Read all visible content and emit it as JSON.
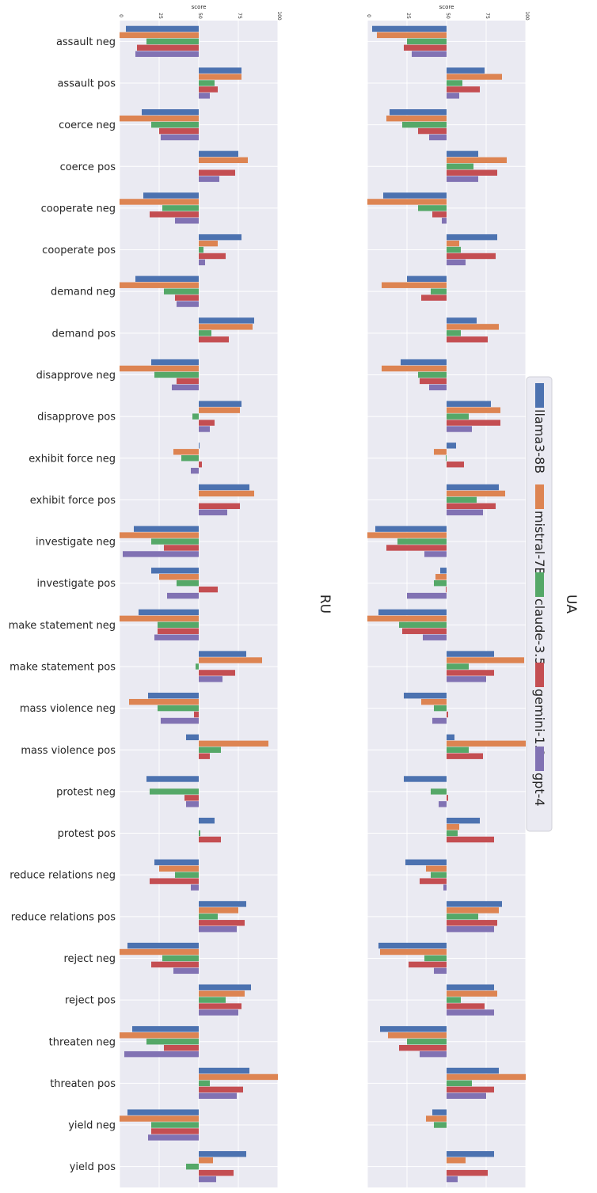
{
  "chart_data": {
    "type": "bar",
    "orientation": "horizontal-rotated",
    "categories": [
      "assault neg",
      "assault pos",
      "coerce neg",
      "coerce pos",
      "cooperate neg",
      "cooperate pos",
      "demand neg",
      "demand pos",
      "disapprove neg",
      "disapprove pos",
      "exhibit force neg",
      "exhibit force pos",
      "investigate neg",
      "investigate pos",
      "make statement neg",
      "make statement pos",
      "mass violence neg",
      "mass violence pos",
      "protest neg",
      "protest pos",
      "reduce relations neg",
      "reduce relations pos",
      "reject neg",
      "reject pos",
      "threaten neg",
      "threaten pos",
      "yield neg",
      "yield pos"
    ],
    "axis_label": "score",
    "ticks": [
      "0",
      "25",
      "50",
      "75",
      "100"
    ],
    "xlim": [
      0,
      100
    ],
    "baseline": 50,
    "legend": {
      "placement": "right",
      "entries": [
        "llama3-8B",
        "mistral-7B",
        "claude-3.5",
        "gemini-1.0",
        "gpt-4"
      ]
    },
    "colors": {
      "llama3-8B": "#4c72b0",
      "mistral-7B": "#dd8452",
      "claude-3.5": "#55a868",
      "gemini-1.0": "#c44e52",
      "gpt-4": "#8172b3"
    },
    "panels": [
      {
        "title": "RU",
        "series": [
          {
            "name": "llama3-8B",
            "values": [
              4,
              77,
              14,
              75,
              15,
              77,
              10,
              85,
              20,
              77,
              50.5,
              82,
              9,
              20,
              12,
              80,
              18,
              42,
              17,
              60,
              22,
              80,
              5,
              83,
              8,
              82,
              5,
              80
            ]
          },
          {
            "name": "mistral-7B",
            "values": [
              0,
              77,
              0,
              81,
              0,
              62,
              0,
              84,
              0,
              76,
              34,
              85,
              0,
              25,
              0,
              90,
              6,
              94,
              50,
              50,
              25,
              75,
              0,
              79,
              0,
              100,
              0,
              59
            ]
          },
          {
            "name": "claude-3.5",
            "values": [
              17,
              60,
              20,
              50,
              27,
              53,
              28,
              58,
              22,
              46,
              39,
              50,
              20,
              36,
              24,
              48,
              24,
              64,
              19,
              51,
              35,
              62,
              27,
              67,
              17,
              57,
              20,
              42
            ]
          },
          {
            "name": "gemini-1.0",
            "values": [
              11,
              62,
              25,
              73,
              19,
              67,
              35,
              69,
              36,
              60,
              52,
              76,
              28,
              62,
              24,
              73,
              47,
              57,
              41,
              64,
              19,
              79,
              20,
              77,
              28,
              78,
              20,
              72
            ]
          },
          {
            "name": "gpt-4",
            "values": [
              10,
              57,
              26,
              63,
              35,
              54,
              36,
              50,
              33,
              57,
              45,
              68,
              2,
              30,
              22,
              65,
              26,
              50,
              42,
              50,
              45,
              74,
              34,
              75,
              3,
              74,
              18,
              61
            ]
          }
        ]
      },
      {
        "title": "UA",
        "series": [
          {
            "name": "llama3-8B",
            "values": [
              3,
              74,
              14,
              70,
              10,
              82,
              25,
              69,
              21,
              78,
              56,
              83,
              5,
              46,
              7,
              80,
              23,
              55,
              23,
              71,
              24,
              85,
              7,
              80,
              8,
              83,
              41,
              80
            ]
          },
          {
            "name": "mistral-7B",
            "values": [
              6,
              85,
              12,
              88,
              0,
              58,
              9,
              83,
              9,
              84,
              42,
              87,
              0,
              43,
              0,
              99,
              34,
              100,
              50,
              58,
              37,
              83,
              8,
              82,
              13,
              100,
              37,
              62
            ]
          },
          {
            "name": "claude-3.5",
            "values": [
              25,
              60,
              22,
              67,
              32,
              59,
              40,
              59,
              32,
              64,
              49.5,
              69,
              19,
              42,
              20,
              64,
              42,
              64,
              40,
              57,
              40,
              70,
              36,
              59,
              25,
              66,
              42,
              50
            ]
          },
          {
            "name": "gemini-1.0",
            "values": [
              23,
              71,
              32,
              82,
              41,
              81,
              34,
              76,
              33,
              84,
              61,
              81,
              12,
              49.5,
              22,
              80,
              51,
              73,
              51,
              80,
              33,
              82,
              26,
              74,
              20,
              80,
              50,
              76
            ]
          },
          {
            "name": "gpt-4",
            "values": [
              28,
              58,
              39,
              70,
              47,
              62,
              50,
              50,
              39,
              66,
              50,
              73,
              36,
              25,
              35,
              75,
              41,
              50,
              45,
              50,
              48,
              80,
              42,
              80,
              33,
              75,
              50,
              57
            ]
          }
        ]
      }
    ]
  }
}
